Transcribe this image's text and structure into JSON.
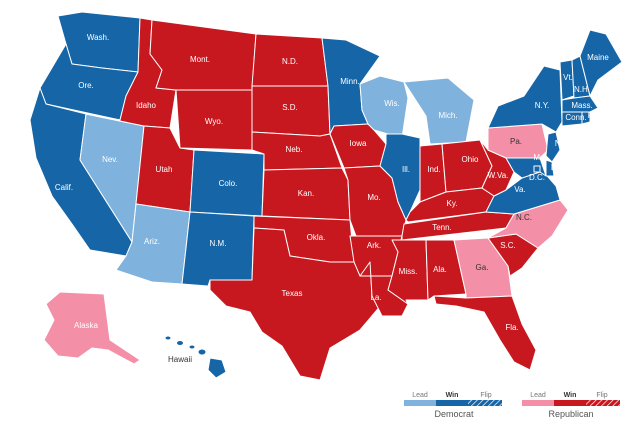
{
  "colors": {
    "dem_lead": "#7fb2dc",
    "dem_win": "#1565a7",
    "rep_lead": "#f48fa8",
    "rep_win": "#c8181f",
    "border": "#ffffff"
  },
  "states": [
    {
      "id": "wa",
      "label": "Wash.",
      "status": "dem_win"
    },
    {
      "id": "or",
      "label": "Ore.",
      "status": "dem_win"
    },
    {
      "id": "ca",
      "label": "Calif.",
      "status": "dem_win"
    },
    {
      "id": "nv",
      "label": "Nev.",
      "status": "dem_lead"
    },
    {
      "id": "id",
      "label": "Idaho",
      "status": "rep_win"
    },
    {
      "id": "mt",
      "label": "Mont.",
      "status": "rep_win"
    },
    {
      "id": "wy",
      "label": "Wyo.",
      "status": "rep_win"
    },
    {
      "id": "ut",
      "label": "Utah",
      "status": "rep_win"
    },
    {
      "id": "az",
      "label": "Ariz.",
      "status": "dem_lead"
    },
    {
      "id": "co",
      "label": "Colo.",
      "status": "dem_win"
    },
    {
      "id": "nm",
      "label": "N.M.",
      "status": "dem_win"
    },
    {
      "id": "nd",
      "label": "N.D.",
      "status": "rep_win"
    },
    {
      "id": "sd",
      "label": "S.D.",
      "status": "rep_win"
    },
    {
      "id": "ne",
      "label": "Neb.",
      "status": "rep_win"
    },
    {
      "id": "ks",
      "label": "Kan.",
      "status": "rep_win"
    },
    {
      "id": "ok",
      "label": "Okla.",
      "status": "rep_win"
    },
    {
      "id": "tx",
      "label": "Texas",
      "status": "rep_win"
    },
    {
      "id": "mn",
      "label": "Minn.",
      "status": "dem_win"
    },
    {
      "id": "ia",
      "label": "Iowa",
      "status": "rep_win"
    },
    {
      "id": "mo",
      "label": "Mo.",
      "status": "rep_win"
    },
    {
      "id": "ar",
      "label": "Ark.",
      "status": "rep_win"
    },
    {
      "id": "la",
      "label": "La.",
      "status": "rep_win"
    },
    {
      "id": "wi",
      "label": "Wis.",
      "status": "dem_lead"
    },
    {
      "id": "il",
      "label": "Ill.",
      "status": "dem_win"
    },
    {
      "id": "mi",
      "label": "Mich.",
      "status": "dem_lead"
    },
    {
      "id": "in",
      "label": "Ind.",
      "status": "rep_win"
    },
    {
      "id": "oh",
      "label": "Ohio",
      "status": "rep_win"
    },
    {
      "id": "ky",
      "label": "Ky.",
      "status": "rep_win"
    },
    {
      "id": "tn",
      "label": "Tenn.",
      "status": "rep_win"
    },
    {
      "id": "ms",
      "label": "Miss.",
      "status": "rep_win"
    },
    {
      "id": "al",
      "label": "Ala.",
      "status": "rep_win"
    },
    {
      "id": "ga",
      "label": "Ga.",
      "status": "rep_lead"
    },
    {
      "id": "fl",
      "label": "Fla.",
      "status": "rep_win"
    },
    {
      "id": "sc",
      "label": "S.C.",
      "status": "rep_win"
    },
    {
      "id": "nc",
      "label": "N.C.",
      "status": "rep_lead"
    },
    {
      "id": "va",
      "label": "Va.",
      "status": "dem_win"
    },
    {
      "id": "wv",
      "label": "W.Va.",
      "status": "rep_win"
    },
    {
      "id": "pa",
      "label": "Pa.",
      "status": "rep_lead"
    },
    {
      "id": "ny",
      "label": "N.Y.",
      "status": "dem_win"
    },
    {
      "id": "vt",
      "label": "Vt.",
      "status": "dem_win"
    },
    {
      "id": "nh",
      "label": "N.H.",
      "status": "dem_win"
    },
    {
      "id": "me",
      "label": "Maine",
      "status": "dem_win"
    },
    {
      "id": "ma",
      "label": "Mass.",
      "status": "dem_win"
    },
    {
      "id": "ct",
      "label": "Conn.",
      "status": "dem_win"
    },
    {
      "id": "ri",
      "label": "R.I.",
      "status": "dem_win"
    },
    {
      "id": "nj",
      "label": "N.J.",
      "status": "dem_win"
    },
    {
      "id": "de",
      "label": "Del.",
      "status": "dem_win"
    },
    {
      "id": "md",
      "label": "Md.",
      "status": "dem_win"
    },
    {
      "id": "dc",
      "label": "D.C.",
      "status": "dem_win"
    },
    {
      "id": "ak",
      "label": "Alaska",
      "status": "rep_lead"
    },
    {
      "id": "hi",
      "label": "Hawaii",
      "status": "dem_win"
    }
  ],
  "legend": {
    "dem": {
      "party": "Democrat",
      "lead": "Lead",
      "win": "Win",
      "flip": "Flip"
    },
    "rep": {
      "party": "Republican",
      "lead": "Lead",
      "win": "Win",
      "flip": "Flip"
    }
  }
}
